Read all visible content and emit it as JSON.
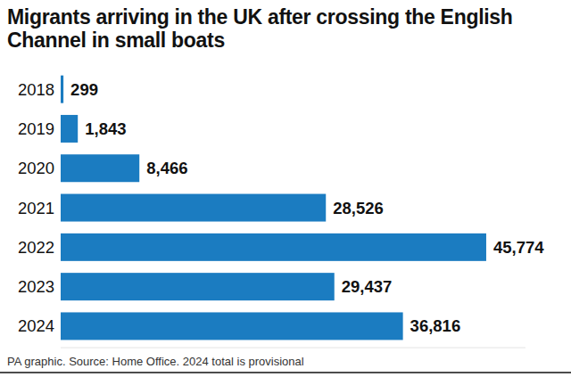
{
  "chart_data": {
    "type": "bar",
    "orientation": "horizontal",
    "title": "Migrants arriving in the UK after crossing the English Channel in small boats",
    "source": "PA graphic. Source: Home Office. 2024 total is provisional",
    "categories": [
      "2018",
      "2019",
      "2020",
      "2021",
      "2022",
      "2023",
      "2024"
    ],
    "values": [
      299,
      1843,
      8466,
      28526,
      45774,
      29437,
      36816
    ],
    "value_labels": [
      "299",
      "1,843",
      "8,466",
      "28,526",
      "45,774",
      "29,437",
      "36,816"
    ],
    "color": "#1b7cc1",
    "xlim": [
      0,
      50000
    ],
    "data_labels": true,
    "tick_labels": "y",
    "grid": false
  }
}
